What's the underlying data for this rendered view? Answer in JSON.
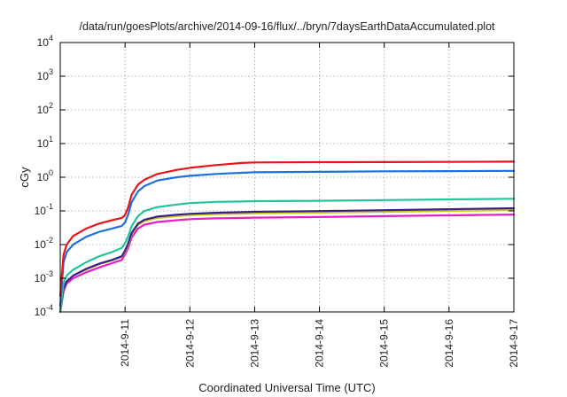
{
  "chart_data": {
    "type": "line",
    "title": "/data/run/goesPlots/archive/2014-09-16/flux/../bryn/7daysEarthDataAccumulated.plot",
    "xlabel": "Coordinated Universal Time (UTC)",
    "ylabel": "cGy",
    "x_is_date": true,
    "xlim": [
      "2014-09-10",
      "2014-09-17"
    ],
    "ylim": [
      0.0001,
      10000
    ],
    "yscale": "log",
    "grid": true,
    "xticks": [
      {
        "x": "2014-09-11",
        "label": "2014-9-11"
      },
      {
        "x": "2014-09-12",
        "label": "2014-9-12"
      },
      {
        "x": "2014-09-13",
        "label": "2014-9-13"
      },
      {
        "x": "2014-09-14",
        "label": "2014-9-14"
      },
      {
        "x": "2014-09-15",
        "label": "2014-9-15"
      },
      {
        "x": "2014-09-16",
        "label": "2014-9-16"
      },
      {
        "x": "2014-09-17",
        "label": "2014-9-17"
      }
    ],
    "yticks": [
      {
        "y": 0.0001,
        "base": "10",
        "exp": "-4"
      },
      {
        "y": 0.001,
        "base": "10",
        "exp": "-3"
      },
      {
        "y": 0.01,
        "base": "10",
        "exp": "-2"
      },
      {
        "y": 0.1,
        "base": "10",
        "exp": "-1"
      },
      {
        "y": 1,
        "base": "10",
        "exp": "0"
      },
      {
        "y": 10,
        "base": "10",
        "exp": "1"
      },
      {
        "y": 100,
        "base": "10",
        "exp": "2"
      },
      {
        "y": 1000,
        "base": "10",
        "exp": "3"
      },
      {
        "y": 10000,
        "base": "10",
        "exp": "4"
      }
    ],
    "series": [
      {
        "color": "#e8141b",
        "points": [
          [
            "2014-09-10T00:00",
            0.0003
          ],
          [
            "2014-09-10T01:12",
            0.005
          ],
          [
            "2014-09-10T02:24",
            0.01
          ],
          [
            "2014-09-10T04:48",
            0.018
          ],
          [
            "2014-09-10T09:36",
            0.03
          ],
          [
            "2014-09-10T14:24",
            0.042
          ],
          [
            "2014-09-10T19:12",
            0.053
          ],
          [
            "2014-09-10T22:48",
            0.062
          ],
          [
            "2014-09-11T00:00",
            0.075
          ],
          [
            "2014-09-11T01:12",
            0.13
          ],
          [
            "2014-09-11T02:24",
            0.3
          ],
          [
            "2014-09-11T04:48",
            0.6
          ],
          [
            "2014-09-11T07:12",
            0.85
          ],
          [
            "2014-09-11T12:00",
            1.25
          ],
          [
            "2014-09-11T19:12",
            1.65
          ],
          [
            "2014-09-12T00:00",
            1.9
          ],
          [
            "2014-09-12T09:36",
            2.3
          ],
          [
            "2014-09-12T19:12",
            2.65
          ],
          [
            "2014-09-13T00:00",
            2.75
          ],
          [
            "2014-09-14T00:00",
            2.8
          ],
          [
            "2014-09-15T00:00",
            2.82
          ],
          [
            "2014-09-16T00:00",
            2.85
          ],
          [
            "2014-09-17T00:00",
            2.9
          ]
        ]
      },
      {
        "color": "#1f6fe0",
        "points": [
          [
            "2014-09-10T00:00",
            0.00015
          ],
          [
            "2014-09-10T01:12",
            0.003
          ],
          [
            "2014-09-10T02:24",
            0.006
          ],
          [
            "2014-09-10T04:48",
            0.01
          ],
          [
            "2014-09-10T09:36",
            0.017
          ],
          [
            "2014-09-10T14:24",
            0.024
          ],
          [
            "2014-09-10T19:12",
            0.03
          ],
          [
            "2014-09-10T22:48",
            0.036
          ],
          [
            "2014-09-11T00:00",
            0.045
          ],
          [
            "2014-09-11T01:12",
            0.08
          ],
          [
            "2014-09-11T02:24",
            0.18
          ],
          [
            "2014-09-11T04:48",
            0.38
          ],
          [
            "2014-09-11T07:12",
            0.55
          ],
          [
            "2014-09-11T12:00",
            0.8
          ],
          [
            "2014-09-11T19:12",
            1.0
          ],
          [
            "2014-09-12T00:00",
            1.1
          ],
          [
            "2014-09-12T09:36",
            1.25
          ],
          [
            "2014-09-12T19:12",
            1.35
          ],
          [
            "2014-09-13T00:00",
            1.4
          ],
          [
            "2014-09-14T00:00",
            1.45
          ],
          [
            "2014-09-15T00:00",
            1.5
          ],
          [
            "2014-09-16T00:00",
            1.52
          ],
          [
            "2014-09-17T00:00",
            1.55
          ]
        ]
      },
      {
        "color": "#22c49a",
        "points": [
          [
            "2014-09-10T00:00",
            0.0001
          ],
          [
            "2014-09-10T01:12",
            0.0007
          ],
          [
            "2014-09-10T02:24",
            0.0012
          ],
          [
            "2014-09-10T04:48",
            0.0018
          ],
          [
            "2014-09-10T09:36",
            0.003
          ],
          [
            "2014-09-10T14:24",
            0.0045
          ],
          [
            "2014-09-10T19:12",
            0.006
          ],
          [
            "2014-09-10T22:48",
            0.008
          ],
          [
            "2014-09-11T00:00",
            0.011
          ],
          [
            "2014-09-11T01:12",
            0.018
          ],
          [
            "2014-09-11T02:24",
            0.035
          ],
          [
            "2014-09-11T04:48",
            0.07
          ],
          [
            "2014-09-11T07:12",
            0.1
          ],
          [
            "2014-09-11T12:00",
            0.13
          ],
          [
            "2014-09-11T19:12",
            0.155
          ],
          [
            "2014-09-12T00:00",
            0.17
          ],
          [
            "2014-09-12T09:36",
            0.185
          ],
          [
            "2014-09-12T19:12",
            0.19
          ],
          [
            "2014-09-13T00:00",
            0.195
          ],
          [
            "2014-09-14T00:00",
            0.2
          ],
          [
            "2014-09-15T00:00",
            0.21
          ],
          [
            "2014-09-16T00:00",
            0.22
          ],
          [
            "2014-09-17T00:00",
            0.23
          ]
        ]
      },
      {
        "color": "#3a1f8c",
        "points": [
          [
            "2014-09-10T00:00",
            0.0001
          ],
          [
            "2014-09-10T01:12",
            0.0005
          ],
          [
            "2014-09-10T02:24",
            0.0008
          ],
          [
            "2014-09-10T04:48",
            0.0012
          ],
          [
            "2014-09-10T09:36",
            0.0019
          ],
          [
            "2014-09-10T14:24",
            0.0027
          ],
          [
            "2014-09-10T19:12",
            0.0035
          ],
          [
            "2014-09-10T22:48",
            0.0045
          ],
          [
            "2014-09-11T00:00",
            0.0065
          ],
          [
            "2014-09-11T01:12",
            0.011
          ],
          [
            "2014-09-11T02:24",
            0.022
          ],
          [
            "2014-09-11T04:48",
            0.042
          ],
          [
            "2014-09-11T07:12",
            0.055
          ],
          [
            "2014-09-11T12:00",
            0.068
          ],
          [
            "2014-09-11T19:12",
            0.077
          ],
          [
            "2014-09-12T00:00",
            0.082
          ],
          [
            "2014-09-12T09:36",
            0.088
          ],
          [
            "2014-09-12T19:12",
            0.092
          ],
          [
            "2014-09-13T00:00",
            0.094
          ],
          [
            "2014-09-14T00:00",
            0.099
          ],
          [
            "2014-09-15T00:00",
            0.105
          ],
          [
            "2014-09-16T00:00",
            0.112
          ],
          [
            "2014-09-17T00:00",
            0.12
          ]
        ]
      },
      {
        "color": "#c8c81e",
        "points": [
          [
            "2014-09-10T00:00",
            0.0001
          ],
          [
            "2014-09-10T01:12",
            0.0005
          ],
          [
            "2014-09-10T02:24",
            0.0008
          ],
          [
            "2014-09-10T04:48",
            0.0012
          ],
          [
            "2014-09-10T09:36",
            0.0018
          ],
          [
            "2014-09-10T14:24",
            0.0026
          ],
          [
            "2014-09-10T19:12",
            0.0034
          ],
          [
            "2014-09-10T22:48",
            0.0043
          ],
          [
            "2014-09-11T00:00",
            0.006
          ],
          [
            "2014-09-11T01:12",
            0.01
          ],
          [
            "2014-09-11T02:24",
            0.02
          ],
          [
            "2014-09-11T04:48",
            0.038
          ],
          [
            "2014-09-11T07:12",
            0.05
          ],
          [
            "2014-09-11T12:00",
            0.062
          ],
          [
            "2014-09-11T19:12",
            0.07
          ],
          [
            "2014-09-12T00:00",
            0.075
          ],
          [
            "2014-09-12T09:36",
            0.08
          ],
          [
            "2014-09-12T19:12",
            0.083
          ],
          [
            "2014-09-13T00:00",
            0.085
          ],
          [
            "2014-09-14T00:00",
            0.089
          ],
          [
            "2014-09-15T00:00",
            0.094
          ],
          [
            "2014-09-16T00:00",
            0.1
          ],
          [
            "2014-09-17T00:00",
            0.106
          ]
        ]
      },
      {
        "color": "#e61fc8",
        "points": [
          [
            "2014-09-10T00:00",
            0.0001
          ],
          [
            "2014-09-10T01:12",
            0.0004
          ],
          [
            "2014-09-10T02:24",
            0.0007
          ],
          [
            "2014-09-10T04:48",
            0.001
          ],
          [
            "2014-09-10T09:36",
            0.0015
          ],
          [
            "2014-09-10T14:24",
            0.0021
          ],
          [
            "2014-09-10T19:12",
            0.0028
          ],
          [
            "2014-09-10T22:48",
            0.0035
          ],
          [
            "2014-09-11T00:00",
            0.005
          ],
          [
            "2014-09-11T01:12",
            0.008
          ],
          [
            "2014-09-11T02:24",
            0.016
          ],
          [
            "2014-09-11T04:48",
            0.03
          ],
          [
            "2014-09-11T07:12",
            0.039
          ],
          [
            "2014-09-11T12:00",
            0.047
          ],
          [
            "2014-09-11T19:12",
            0.053
          ],
          [
            "2014-09-12T00:00",
            0.057
          ],
          [
            "2014-09-12T09:36",
            0.06
          ],
          [
            "2014-09-12T19:12",
            0.062
          ],
          [
            "2014-09-13T00:00",
            0.063
          ],
          [
            "2014-09-14T00:00",
            0.066
          ],
          [
            "2014-09-15T00:00",
            0.07
          ],
          [
            "2014-09-16T00:00",
            0.074
          ],
          [
            "2014-09-17T00:00",
            0.078
          ]
        ]
      }
    ]
  }
}
